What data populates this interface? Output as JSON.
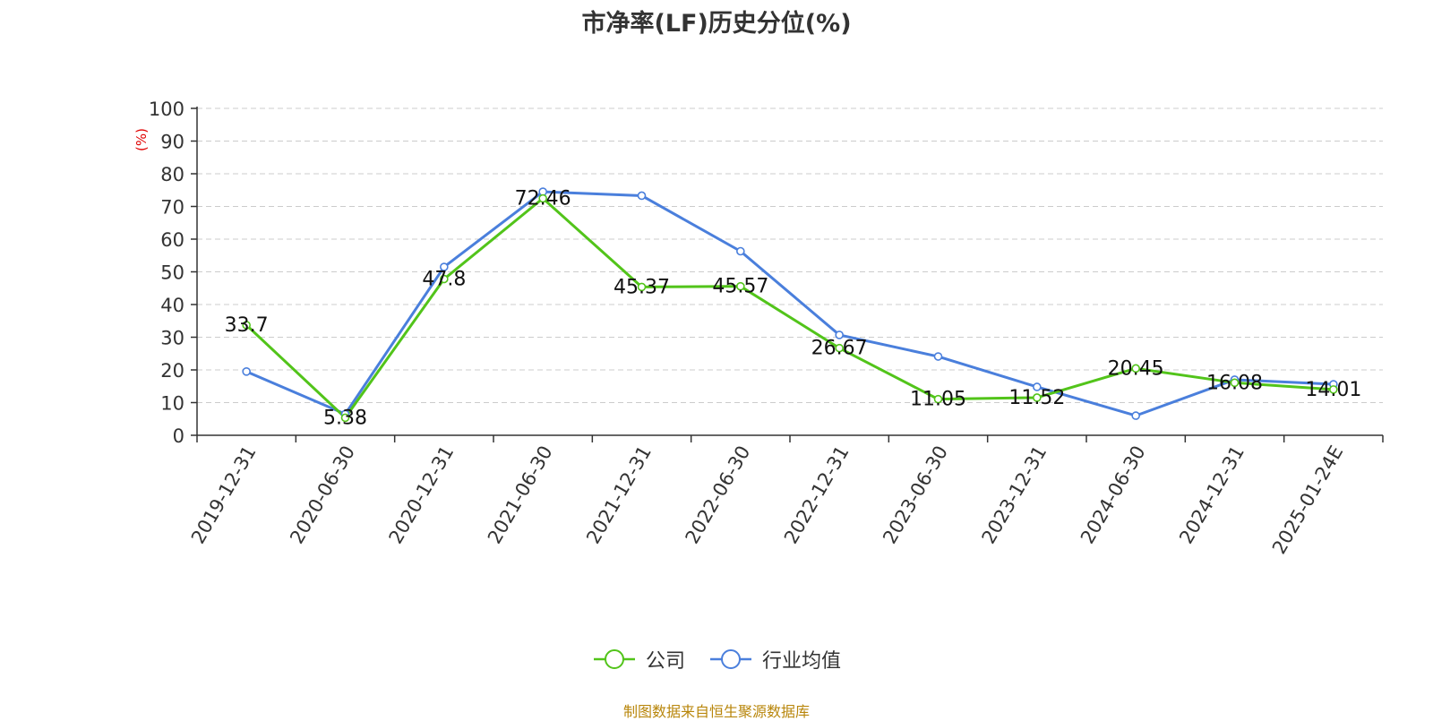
{
  "title": "市净率(LF)历史分位(%)",
  "source_note": "制图数据来自恒生聚源数据库",
  "chart_data": {
    "type": "line",
    "title": "市净率(LF)历史分位(%)",
    "ylabel": "(%)",
    "xlabel": "",
    "ylim": [
      0,
      100
    ],
    "yticks": [
      0,
      10,
      20,
      30,
      40,
      50,
      60,
      70,
      80,
      90,
      100
    ],
    "grid": true,
    "legend_position": "bottom",
    "categories": [
      "2019-12-31",
      "2020-06-30",
      "2020-12-31",
      "2021-06-30",
      "2021-12-31",
      "2022-06-30",
      "2022-12-31",
      "2023-06-30",
      "2023-12-31",
      "2024-06-30",
      "2024-12-31",
      "2025-01-24E"
    ],
    "series": [
      {
        "name": "公司",
        "color": "#52c41a",
        "values": [
          33.7,
          5.38,
          47.8,
          72.46,
          45.37,
          45.57,
          26.67,
          11.05,
          11.52,
          20.45,
          16.08,
          14.01
        ],
        "labels": [
          "33.7",
          "5.38",
          "47.8",
          "72.46",
          "45.37",
          "45.57",
          "26.67",
          "11.05",
          "11.52",
          "20.45",
          "16.08",
          "14.01"
        ]
      },
      {
        "name": "行业均值",
        "color": "#4a7fdc",
        "values": [
          19.5,
          6.5,
          51.5,
          74.5,
          73.3,
          56.3,
          30.7,
          24.1,
          14.8,
          6.0,
          17.0,
          15.6
        ]
      }
    ]
  }
}
